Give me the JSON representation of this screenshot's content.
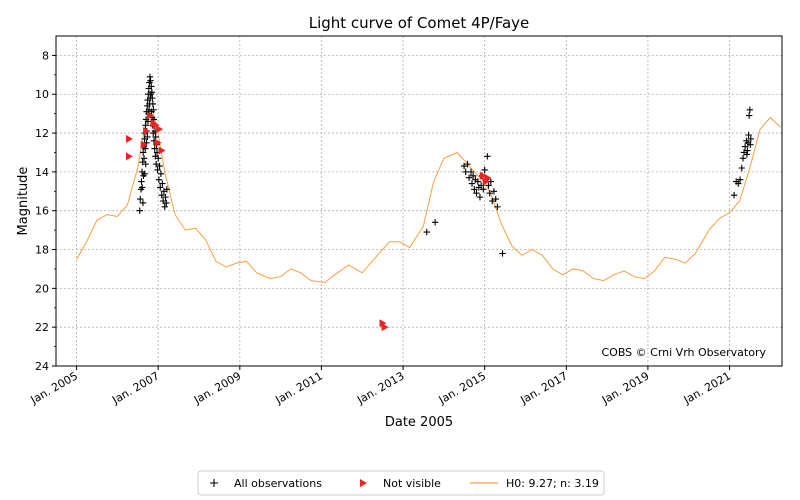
{
  "chart_data": {
    "type": "scatter",
    "title": "Light curve of Comet 4P/Faye",
    "xlabel": "Date 2005",
    "ylabel": "Magnitude",
    "xlim": [
      "2004-07-01",
      "2022-04-15"
    ],
    "ylim": [
      24,
      7
    ],
    "y_inverted": true,
    "grid": true,
    "x_ticks": [
      {
        "date": "2005-01-01",
        "label": "Jan. 2005"
      },
      {
        "date": "2007-01-01",
        "label": "Jan. 2007"
      },
      {
        "date": "2009-01-01",
        "label": "Jan. 2009"
      },
      {
        "date": "2011-01-01",
        "label": "Jan. 2011"
      },
      {
        "date": "2013-01-01",
        "label": "Jan. 2013"
      },
      {
        "date": "2015-01-01",
        "label": "Jan. 2015"
      },
      {
        "date": "2017-01-01",
        "label": "Jan. 2017"
      },
      {
        "date": "2019-01-01",
        "label": "Jan. 2019"
      },
      {
        "date": "2021-01-01",
        "label": "Jan. 2021"
      }
    ],
    "y_ticks": [
      8,
      10,
      12,
      14,
      16,
      18,
      20,
      22,
      24
    ],
    "annotation": "COBS © Crni Vrh Observatory",
    "legend_placement": "bottom",
    "series": [
      {
        "name": "All observations",
        "marker": "+",
        "color": "#000000",
        "points": [
          [
            "2006-07-20",
            16.0
          ],
          [
            "2006-07-25",
            15.4
          ],
          [
            "2006-08-01",
            14.9
          ],
          [
            "2006-08-05",
            14.5
          ],
          [
            "2006-08-10",
            14.0
          ],
          [
            "2006-08-12",
            14.8
          ],
          [
            "2006-08-15",
            13.5
          ],
          [
            "2006-08-18",
            15.6
          ],
          [
            "2006-08-20",
            13.0
          ],
          [
            "2006-08-22",
            14.2
          ],
          [
            "2006-08-25",
            12.7
          ],
          [
            "2006-08-28",
            13.3
          ],
          [
            "2006-09-01",
            12.3
          ],
          [
            "2006-09-03",
            14.1
          ],
          [
            "2006-09-05",
            12.0
          ],
          [
            "2006-09-08",
            12.8
          ],
          [
            "2006-09-10",
            11.6
          ],
          [
            "2006-09-12",
            13.6
          ],
          [
            "2006-09-15",
            11.3
          ],
          [
            "2006-09-18",
            12.5
          ],
          [
            "2006-09-20",
            10.9
          ],
          [
            "2006-09-22",
            11.9
          ],
          [
            "2006-09-25",
            10.6
          ],
          [
            "2006-09-27",
            12.2
          ],
          [
            "2006-09-30",
            10.3
          ],
          [
            "2006-10-02",
            11.4
          ],
          [
            "2006-10-05",
            10.0
          ],
          [
            "2006-10-07",
            11.0
          ],
          [
            "2006-10-10",
            9.7
          ],
          [
            "2006-10-12",
            10.8
          ],
          [
            "2006-10-15",
            9.4
          ],
          [
            "2006-10-17",
            10.5
          ],
          [
            "2006-10-20",
            9.1
          ],
          [
            "2006-10-22",
            10.2
          ],
          [
            "2006-10-25",
            9.3
          ],
          [
            "2006-10-28",
            10.0
          ],
          [
            "2006-11-01",
            9.6
          ],
          [
            "2006-11-03",
            10.9
          ],
          [
            "2006-11-06",
            9.9
          ],
          [
            "2006-11-08",
            11.2
          ],
          [
            "2006-11-10",
            10.2
          ],
          [
            "2006-11-13",
            11.6
          ],
          [
            "2006-11-15",
            10.5
          ],
          [
            "2006-11-18",
            12.0
          ],
          [
            "2006-11-20",
            10.8
          ],
          [
            "2006-11-23",
            11.3
          ],
          [
            "2006-11-25",
            12.4
          ],
          [
            "2006-11-28",
            11.6
          ],
          [
            "2006-12-01",
            12.8
          ],
          [
            "2006-12-04",
            11.9
          ],
          [
            "2006-12-07",
            13.2
          ],
          [
            "2006-12-10",
            12.2
          ],
          [
            "2006-12-14",
            13.6
          ],
          [
            "2006-12-18",
            12.6
          ],
          [
            "2006-12-22",
            13.0
          ],
          [
            "2006-12-27",
            13.9
          ],
          [
            "2007-01-02",
            13.3
          ],
          [
            "2007-01-08",
            14.4
          ],
          [
            "2007-01-14",
            13.7
          ],
          [
            "2007-01-20",
            14.8
          ],
          [
            "2007-01-26",
            14.1
          ],
          [
            "2007-02-02",
            15.2
          ],
          [
            "2007-02-08",
            14.6
          ],
          [
            "2007-02-15",
            15.5
          ],
          [
            "2007-02-22",
            15.0
          ],
          [
            "2007-03-01",
            15.8
          ],
          [
            "2007-03-08",
            15.3
          ],
          [
            "2007-03-15",
            15.6
          ],
          [
            "2007-03-20",
            14.9
          ],
          [
            "2013-08-01",
            17.1
          ],
          [
            "2013-10-15",
            16.6
          ],
          [
            "2014-07-01",
            13.7
          ],
          [
            "2014-07-15",
            14.0
          ],
          [
            "2014-08-01",
            13.6
          ],
          [
            "2014-08-15",
            14.3
          ],
          [
            "2014-09-01",
            14.0
          ],
          [
            "2014-09-10",
            14.6
          ],
          [
            "2014-09-20",
            14.2
          ],
          [
            "2014-10-01",
            14.9
          ],
          [
            "2014-10-10",
            14.4
          ],
          [
            "2014-10-20",
            15.1
          ],
          [
            "2014-11-01",
            14.5
          ],
          [
            "2014-11-10",
            14.8
          ],
          [
            "2014-11-20",
            15.3
          ],
          [
            "2014-12-01",
            14.7
          ],
          [
            "2014-12-10",
            14.2
          ],
          [
            "2014-12-20",
            14.9
          ],
          [
            "2015-01-01",
            13.9
          ],
          [
            "2015-01-15",
            14.4
          ],
          [
            "2015-01-25",
            13.2
          ],
          [
            "2015-02-05",
            14.7
          ],
          [
            "2015-02-15",
            15.1
          ],
          [
            "2015-02-25",
            14.5
          ],
          [
            "2015-03-10",
            15.5
          ],
          [
            "2015-03-25",
            15.0
          ],
          [
            "2015-04-10",
            15.4
          ],
          [
            "2015-04-25",
            15.8
          ],
          [
            "2015-06-10",
            18.2
          ],
          [
            "2021-02-10",
            15.2
          ],
          [
            "2021-03-01",
            14.5
          ],
          [
            "2021-03-20",
            14.6
          ],
          [
            "2021-04-05",
            14.4
          ],
          [
            "2021-04-20",
            13.8
          ],
          [
            "2021-05-01",
            13.3
          ],
          [
            "2021-05-10",
            13.0
          ],
          [
            "2021-05-20",
            12.7
          ],
          [
            "2021-06-01",
            12.4
          ],
          [
            "2021-06-05",
            13.1
          ],
          [
            "2021-06-10",
            12.9
          ],
          [
            "2021-06-15",
            12.5
          ],
          [
            "2021-06-20",
            12.1
          ],
          [
            "2021-06-25",
            11.1
          ],
          [
            "2021-07-01",
            10.8
          ],
          [
            "2021-07-05",
            12.6
          ],
          [
            "2021-07-10",
            12.3
          ]
        ]
      },
      {
        "name": "Not visible",
        "marker": "triangle-right",
        "color": "#ee2222",
        "points": [
          [
            "2006-04-15",
            12.3
          ],
          [
            "2006-04-15",
            13.2
          ],
          [
            "2006-08-25",
            12.6
          ],
          [
            "2006-09-15",
            11.9
          ],
          [
            "2006-10-20",
            11.1
          ],
          [
            "2006-11-20",
            11.5
          ],
          [
            "2006-12-10",
            11.6
          ],
          [
            "2006-12-28",
            12.5
          ],
          [
            "2007-01-10",
            11.8
          ],
          [
            "2007-02-01",
            12.9
          ],
          [
            "2012-07-01",
            21.8
          ],
          [
            "2012-07-20",
            22.0
          ],
          [
            "2014-12-15",
            14.2
          ],
          [
            "2015-01-10",
            14.5
          ],
          [
            "2015-01-25",
            14.3
          ]
        ]
      },
      {
        "name": "H0: 9.27; n: 3.19",
        "type": "line",
        "color": "#f5a040",
        "points": [
          [
            "2005-01-01",
            18.5
          ],
          [
            "2005-04-01",
            17.6
          ],
          [
            "2005-07-01",
            16.5
          ],
          [
            "2005-10-01",
            16.2
          ],
          [
            "2006-01-01",
            16.3
          ],
          [
            "2006-04-01",
            15.7
          ],
          [
            "2006-07-01",
            13.8
          ],
          [
            "2006-09-01",
            11.8
          ],
          [
            "2006-10-15",
            10.8
          ],
          [
            "2006-11-15",
            10.9
          ],
          [
            "2007-01-01",
            12.0
          ],
          [
            "2007-03-01",
            14.0
          ],
          [
            "2007-06-01",
            16.2
          ],
          [
            "2007-09-01",
            17.0
          ],
          [
            "2007-12-01",
            16.9
          ],
          [
            "2008-03-01",
            17.5
          ],
          [
            "2008-06-01",
            18.6
          ],
          [
            "2008-09-01",
            18.9
          ],
          [
            "2008-12-01",
            18.7
          ],
          [
            "2009-03-01",
            18.6
          ],
          [
            "2009-06-01",
            19.2
          ],
          [
            "2009-10-01",
            19.5
          ],
          [
            "2010-01-01",
            19.4
          ],
          [
            "2010-04-01",
            19.0
          ],
          [
            "2010-07-01",
            19.2
          ],
          [
            "2010-10-01",
            19.6
          ],
          [
            "2011-02-01",
            19.7
          ],
          [
            "2011-05-01",
            19.3
          ],
          [
            "2011-09-01",
            18.8
          ],
          [
            "2012-01-01",
            19.2
          ],
          [
            "2012-05-01",
            18.4
          ],
          [
            "2012-09-01",
            17.6
          ],
          [
            "2012-12-01",
            17.6
          ],
          [
            "2013-03-01",
            17.9
          ],
          [
            "2013-07-01",
            16.8
          ],
          [
            "2013-10-01",
            14.5
          ],
          [
            "2014-01-01",
            13.3
          ],
          [
            "2014-05-01",
            13.0
          ],
          [
            "2014-08-01",
            13.6
          ],
          [
            "2014-11-01",
            14.2
          ],
          [
            "2015-01-01",
            14.5
          ],
          [
            "2015-03-01",
            15.2
          ],
          [
            "2015-06-01",
            16.7
          ],
          [
            "2015-09-01",
            17.8
          ],
          [
            "2015-12-01",
            18.3
          ],
          [
            "2016-03-01",
            18.0
          ],
          [
            "2016-06-01",
            18.3
          ],
          [
            "2016-09-01",
            19.0
          ],
          [
            "2016-12-01",
            19.3
          ],
          [
            "2017-03-01",
            19.0
          ],
          [
            "2017-06-01",
            19.1
          ],
          [
            "2017-09-01",
            19.5
          ],
          [
            "2017-12-01",
            19.6
          ],
          [
            "2018-03-01",
            19.3
          ],
          [
            "2018-06-01",
            19.1
          ],
          [
            "2018-09-01",
            19.4
          ],
          [
            "2018-12-01",
            19.5
          ],
          [
            "2019-03-01",
            19.1
          ],
          [
            "2019-06-01",
            18.4
          ],
          [
            "2019-09-01",
            18.5
          ],
          [
            "2019-12-01",
            18.7
          ],
          [
            "2020-03-01",
            18.2
          ],
          [
            "2020-07-01",
            17.0
          ],
          [
            "2020-10-01",
            16.4
          ],
          [
            "2021-01-01",
            16.1
          ],
          [
            "2021-04-01",
            15.5
          ],
          [
            "2021-07-01",
            13.8
          ],
          [
            "2021-10-01",
            11.8
          ],
          [
            "2022-01-01",
            11.2
          ],
          [
            "2022-04-01",
            11.7
          ]
        ]
      }
    ]
  }
}
